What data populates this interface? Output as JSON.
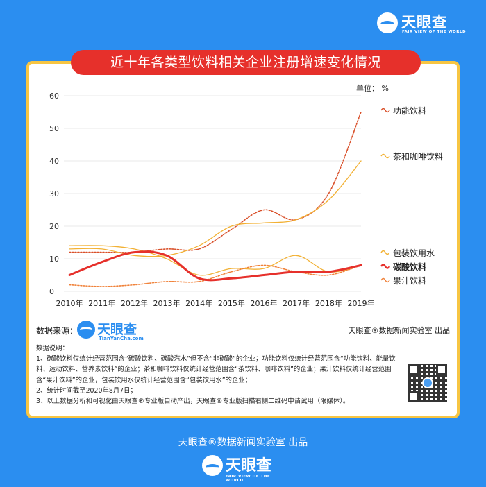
{
  "brand": {
    "name": "天眼查",
    "tagline": "FAIR VIEW OF THE WORLD",
    "site": "TianYanCha.com",
    "primary_color": "#2b8ef0",
    "accent_color": "#e6302b",
    "frame_color": "#f7c542"
  },
  "title": "近十年各类型饮料相关企业注册增速变化情况",
  "unit_label": "单位：  %",
  "source": {
    "label": "数据来源：",
    "credit_right": "天眼查®数据新闻实验室 出品"
  },
  "notes": {
    "heading": "数据说明：",
    "line1": "1、碳酸饮料仅统计经营范围含“碳酸饮料、碳酸汽水”但不含“非碳酸”的企业；功能饮料仅统计经营范围含“功能饮料、能量饮料、运动饮料、营养素饮料”的企业；茶和咖啡饮料仅统计经营范围含“茶饮料、咖啡饮料”的企业；果汁饮料仅统计经营范围含“果汁饮料”的企业，包装饮用水仅统计经营范围含“包装饮用水”的企业；",
    "line2": "2、统计时间截至2020年8月7日；",
    "line3": "3、以上数据分析和可视化由天眼查®专业版自动产出，天眼查®专业版扫描右侧二维码申请试用（限媒体）。"
  },
  "footer": {
    "credit": "天眼查®数据新闻实验室 出品"
  },
  "chart_data": {
    "type": "line",
    "title": "近十年各类型饮料相关企业注册增速变化情况",
    "unit": "%",
    "x": [
      "2010年",
      "2011年",
      "2012年",
      "2013年",
      "2014年",
      "2015年",
      "2016年",
      "2017年",
      "2018年",
      "2019年"
    ],
    "ylim": [
      0,
      60
    ],
    "yticks": [
      0,
      10,
      20,
      30,
      40,
      50,
      60
    ],
    "grid": "horizontal",
    "legend": "right",
    "series": [
      {
        "name": "功能饮料",
        "color": "#d9502a",
        "style": "dotted",
        "values": [
          12,
          12,
          12,
          13,
          13,
          19,
          25,
          22,
          30,
          55
        ]
      },
      {
        "name": "茶和咖啡饮料",
        "color": "#f2b134",
        "style": "solid-thin",
        "values": [
          13,
          13,
          11,
          11,
          14,
          20,
          21,
          22,
          28,
          40
        ]
      },
      {
        "name": "包装饮用水",
        "color": "#f2b134",
        "style": "solid-thin",
        "values": [
          14,
          14,
          13,
          10,
          5,
          7,
          7,
          11,
          6,
          8
        ]
      },
      {
        "name": "碳酸饮料",
        "color": "#e6302b",
        "style": "bold",
        "values": [
          5,
          9,
          12,
          11,
          4,
          4,
          5,
          6,
          6,
          8
        ]
      },
      {
        "name": "果汁饮料",
        "color": "#f0823a",
        "style": "dotted",
        "values": [
          2,
          1.5,
          2,
          3,
          3,
          6,
          8,
          6,
          5,
          8
        ]
      }
    ]
  }
}
